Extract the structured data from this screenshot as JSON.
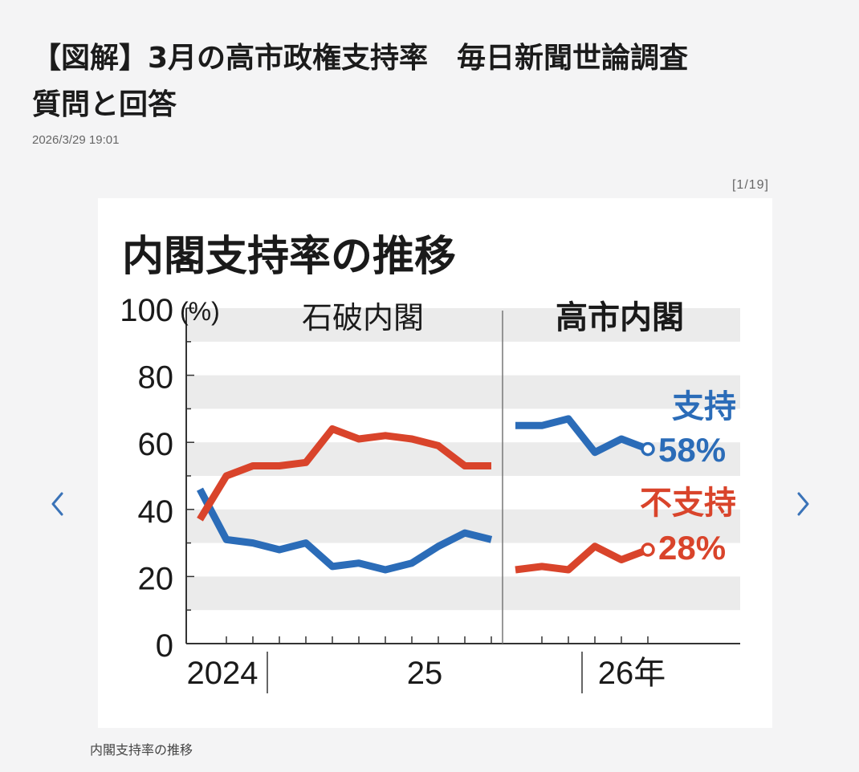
{
  "article": {
    "title_line1": "【図解】3月の高市政権支持率　毎日新聞世論調査",
    "title_line2": "質問と回答",
    "timestamp": "2026/3/29 19:01"
  },
  "gallery": {
    "counter": "[1/19]",
    "caption": "内閣支持率の推移",
    "prev_icon": "chevron-left-icon",
    "next_icon": "chevron-right-icon"
  },
  "chart_data": {
    "type": "line",
    "title": "内閣支持率の推移",
    "unit_label": "(%)",
    "ylim": [
      0,
      100
    ],
    "yticks": [
      "0",
      "20",
      "40",
      "60",
      "80",
      "100"
    ],
    "xticks": [
      "2024",
      "25",
      "26年"
    ],
    "grid": "alternating horizontal bands",
    "periods": [
      {
        "name": "石破内閣"
      },
      {
        "name": "高市内閣"
      }
    ],
    "series": [
      {
        "name": "支持",
        "color": "#2b6cb8",
        "end_label": "58%",
        "segments": [
          [
            46,
            31,
            30,
            28,
            30,
            23,
            24,
            22,
            24,
            29,
            33,
            31
          ],
          [
            65,
            65,
            67,
            57,
            61,
            58
          ]
        ]
      },
      {
        "name": "不支持",
        "color": "#d9442b",
        "end_label": "28%",
        "segments": [
          [
            37,
            50,
            53,
            53,
            54,
            64,
            61,
            62,
            61,
            59,
            53,
            53
          ],
          [
            22,
            23,
            22,
            29,
            25,
            28
          ]
        ]
      }
    ]
  }
}
